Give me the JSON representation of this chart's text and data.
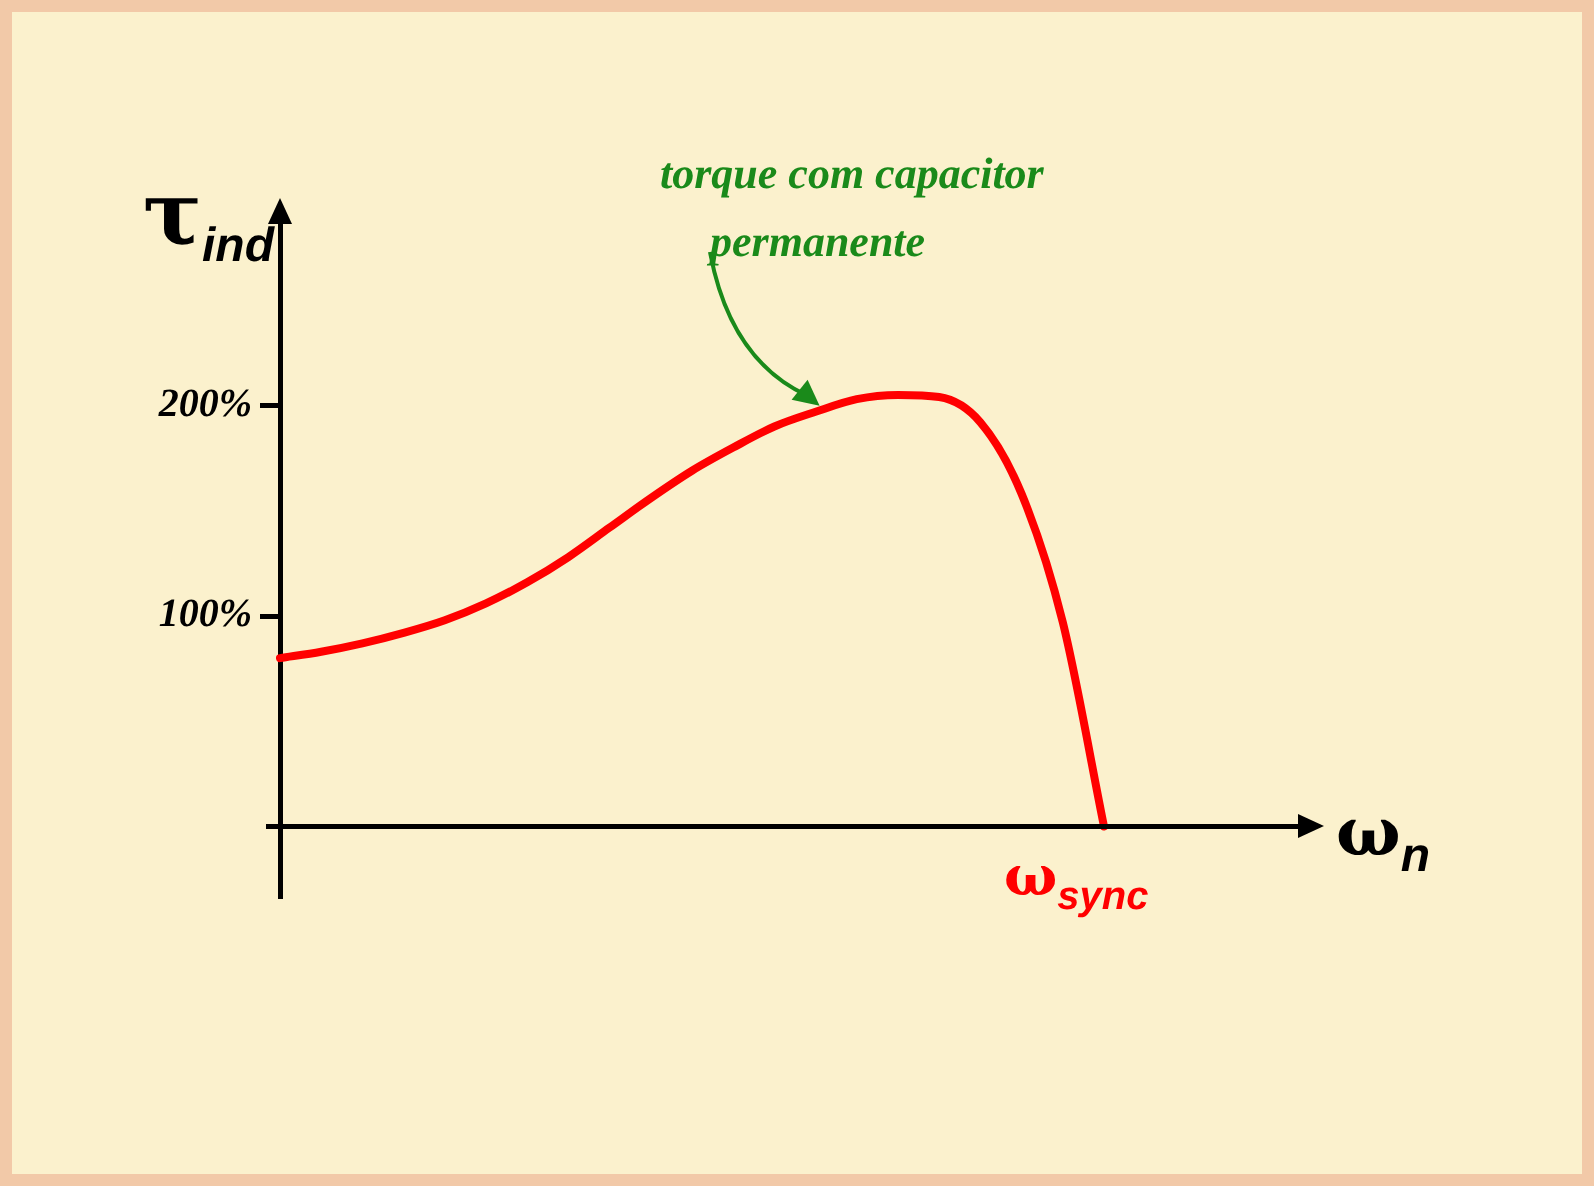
{
  "chart_data": {
    "type": "line",
    "ylabel": "τ$_{ind}$",
    "xlabel": "ω$_{n}$",
    "categories": [
      null,
      null,
      null,
      null,
      null,
      null,
      null,
      null,
      null,
      null,
      null,
      null,
      null,
      null,
      null,
      null,
      null,
      null,
      null,
      null,
      null
    ],
    "series": [
      {
        "color": "#ff0000",
        "values": [
          80,
          83,
          87,
          92,
          98,
          106,
          116,
          128,
          142,
          156,
          169,
          180,
          190,
          197,
          203,
          205,
          204,
          192,
          158,
          97,
          0
        ]
      }
    ],
    "ylim": [
      -33,
      290
    ],
    "yticks": [
      {
        "value": 100,
        "label": "100%"
      },
      {
        "value": 200,
        "label": "200%"
      }
    ],
    "tick_labels": "y",
    "grid": false,
    "legend": false,
    "marker": "none",
    "line_style": "solid",
    "annotations": [
      "torque com capacitor permanente",
      "ω$_{sync}$"
    ]
  }
}
